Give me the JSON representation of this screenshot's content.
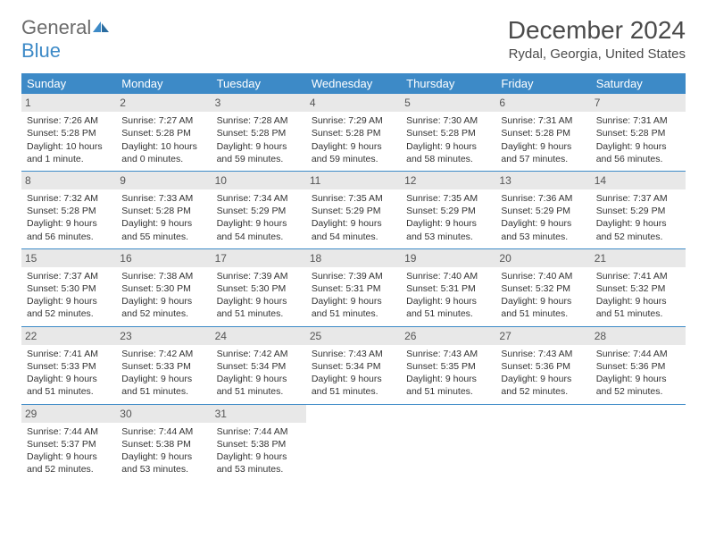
{
  "brand": {
    "general": "General",
    "blue": "Blue",
    "icon_color": "#3d8ac7"
  },
  "title": "December 2024",
  "location": "Rydal, Georgia, United States",
  "colors": {
    "header_bg": "#3d8ac7",
    "header_fg": "#ffffff",
    "daynum_bg": "#e8e8e8",
    "row_border": "#3d8ac7",
    "text": "#333333",
    "title_text": "#4a4a4a"
  },
  "typography": {
    "title_fontsize": 28,
    "location_fontsize": 15,
    "header_fontsize": 13,
    "cell_fontsize": 10.5
  },
  "weekdays": [
    "Sunday",
    "Monday",
    "Tuesday",
    "Wednesday",
    "Thursday",
    "Friday",
    "Saturday"
  ],
  "weeks": [
    [
      {
        "day": "1",
        "sunrise": "Sunrise: 7:26 AM",
        "sunset": "Sunset: 5:28 PM",
        "daylight": "Daylight: 10 hours and 1 minute."
      },
      {
        "day": "2",
        "sunrise": "Sunrise: 7:27 AM",
        "sunset": "Sunset: 5:28 PM",
        "daylight": "Daylight: 10 hours and 0 minutes."
      },
      {
        "day": "3",
        "sunrise": "Sunrise: 7:28 AM",
        "sunset": "Sunset: 5:28 PM",
        "daylight": "Daylight: 9 hours and 59 minutes."
      },
      {
        "day": "4",
        "sunrise": "Sunrise: 7:29 AM",
        "sunset": "Sunset: 5:28 PM",
        "daylight": "Daylight: 9 hours and 59 minutes."
      },
      {
        "day": "5",
        "sunrise": "Sunrise: 7:30 AM",
        "sunset": "Sunset: 5:28 PM",
        "daylight": "Daylight: 9 hours and 58 minutes."
      },
      {
        "day": "6",
        "sunrise": "Sunrise: 7:31 AM",
        "sunset": "Sunset: 5:28 PM",
        "daylight": "Daylight: 9 hours and 57 minutes."
      },
      {
        "day": "7",
        "sunrise": "Sunrise: 7:31 AM",
        "sunset": "Sunset: 5:28 PM",
        "daylight": "Daylight: 9 hours and 56 minutes."
      }
    ],
    [
      {
        "day": "8",
        "sunrise": "Sunrise: 7:32 AM",
        "sunset": "Sunset: 5:28 PM",
        "daylight": "Daylight: 9 hours and 56 minutes."
      },
      {
        "day": "9",
        "sunrise": "Sunrise: 7:33 AM",
        "sunset": "Sunset: 5:28 PM",
        "daylight": "Daylight: 9 hours and 55 minutes."
      },
      {
        "day": "10",
        "sunrise": "Sunrise: 7:34 AM",
        "sunset": "Sunset: 5:29 PM",
        "daylight": "Daylight: 9 hours and 54 minutes."
      },
      {
        "day": "11",
        "sunrise": "Sunrise: 7:35 AM",
        "sunset": "Sunset: 5:29 PM",
        "daylight": "Daylight: 9 hours and 54 minutes."
      },
      {
        "day": "12",
        "sunrise": "Sunrise: 7:35 AM",
        "sunset": "Sunset: 5:29 PM",
        "daylight": "Daylight: 9 hours and 53 minutes."
      },
      {
        "day": "13",
        "sunrise": "Sunrise: 7:36 AM",
        "sunset": "Sunset: 5:29 PM",
        "daylight": "Daylight: 9 hours and 53 minutes."
      },
      {
        "day": "14",
        "sunrise": "Sunrise: 7:37 AM",
        "sunset": "Sunset: 5:29 PM",
        "daylight": "Daylight: 9 hours and 52 minutes."
      }
    ],
    [
      {
        "day": "15",
        "sunrise": "Sunrise: 7:37 AM",
        "sunset": "Sunset: 5:30 PM",
        "daylight": "Daylight: 9 hours and 52 minutes."
      },
      {
        "day": "16",
        "sunrise": "Sunrise: 7:38 AM",
        "sunset": "Sunset: 5:30 PM",
        "daylight": "Daylight: 9 hours and 52 minutes."
      },
      {
        "day": "17",
        "sunrise": "Sunrise: 7:39 AM",
        "sunset": "Sunset: 5:30 PM",
        "daylight": "Daylight: 9 hours and 51 minutes."
      },
      {
        "day": "18",
        "sunrise": "Sunrise: 7:39 AM",
        "sunset": "Sunset: 5:31 PM",
        "daylight": "Daylight: 9 hours and 51 minutes."
      },
      {
        "day": "19",
        "sunrise": "Sunrise: 7:40 AM",
        "sunset": "Sunset: 5:31 PM",
        "daylight": "Daylight: 9 hours and 51 minutes."
      },
      {
        "day": "20",
        "sunrise": "Sunrise: 7:40 AM",
        "sunset": "Sunset: 5:32 PM",
        "daylight": "Daylight: 9 hours and 51 minutes."
      },
      {
        "day": "21",
        "sunrise": "Sunrise: 7:41 AM",
        "sunset": "Sunset: 5:32 PM",
        "daylight": "Daylight: 9 hours and 51 minutes."
      }
    ],
    [
      {
        "day": "22",
        "sunrise": "Sunrise: 7:41 AM",
        "sunset": "Sunset: 5:33 PM",
        "daylight": "Daylight: 9 hours and 51 minutes."
      },
      {
        "day": "23",
        "sunrise": "Sunrise: 7:42 AM",
        "sunset": "Sunset: 5:33 PM",
        "daylight": "Daylight: 9 hours and 51 minutes."
      },
      {
        "day": "24",
        "sunrise": "Sunrise: 7:42 AM",
        "sunset": "Sunset: 5:34 PM",
        "daylight": "Daylight: 9 hours and 51 minutes."
      },
      {
        "day": "25",
        "sunrise": "Sunrise: 7:43 AM",
        "sunset": "Sunset: 5:34 PM",
        "daylight": "Daylight: 9 hours and 51 minutes."
      },
      {
        "day": "26",
        "sunrise": "Sunrise: 7:43 AM",
        "sunset": "Sunset: 5:35 PM",
        "daylight": "Daylight: 9 hours and 51 minutes."
      },
      {
        "day": "27",
        "sunrise": "Sunrise: 7:43 AM",
        "sunset": "Sunset: 5:36 PM",
        "daylight": "Daylight: 9 hours and 52 minutes."
      },
      {
        "day": "28",
        "sunrise": "Sunrise: 7:44 AM",
        "sunset": "Sunset: 5:36 PM",
        "daylight": "Daylight: 9 hours and 52 minutes."
      }
    ],
    [
      {
        "day": "29",
        "sunrise": "Sunrise: 7:44 AM",
        "sunset": "Sunset: 5:37 PM",
        "daylight": "Daylight: 9 hours and 52 minutes."
      },
      {
        "day": "30",
        "sunrise": "Sunrise: 7:44 AM",
        "sunset": "Sunset: 5:38 PM",
        "daylight": "Daylight: 9 hours and 53 minutes."
      },
      {
        "day": "31",
        "sunrise": "Sunrise: 7:44 AM",
        "sunset": "Sunset: 5:38 PM",
        "daylight": "Daylight: 9 hours and 53 minutes."
      },
      {
        "empty": true
      },
      {
        "empty": true
      },
      {
        "empty": true
      },
      {
        "empty": true
      }
    ]
  ]
}
